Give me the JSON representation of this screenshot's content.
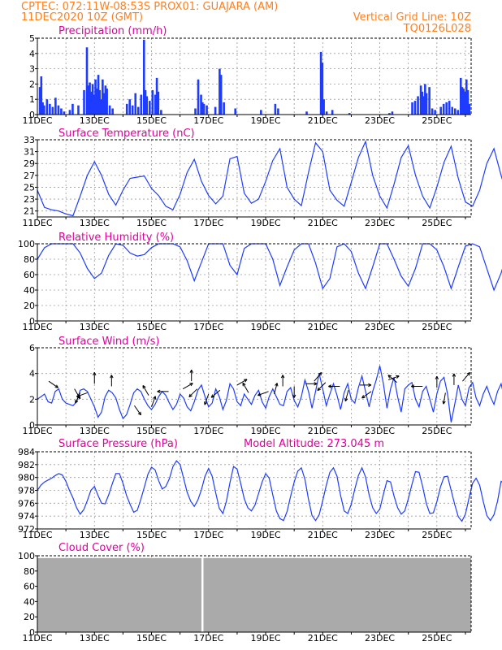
{
  "header": {
    "line1_left": "CPTEC:   072:11W-08:53S   PROX01: GUAJARA (AM)",
    "line2_left": "11DEC2020 10Z (GMT)",
    "line2_right": "Vertical Grid Line: 10Z",
    "line3_right": "TQ0126L028"
  },
  "colors": {
    "header": "#ff7f1e",
    "title": "#e0009a",
    "series": "#1e3cff",
    "cloud": "#aaaaaa",
    "arrow": "#000000"
  },
  "x_ticks": [
    "11DEC",
    "13DEC",
    "15DEC",
    "17DEC",
    "19DEC",
    "21DEC",
    "23DEC",
    "25DEC"
  ],
  "chart_data": [
    {
      "id": "precip",
      "type": "bar",
      "title": "Precipitation (mm/h)",
      "ylim": [
        0,
        5
      ],
      "yticks": [
        "0",
        "1",
        "2",
        "3",
        "4",
        "5"
      ],
      "x_range_days": [
        0,
        15.2
      ],
      "bars": [
        [
          0.05,
          1.8
        ],
        [
          0.1,
          2.5
        ],
        [
          0.15,
          0.8
        ],
        [
          0.2,
          0.6
        ],
        [
          0.3,
          1.0
        ],
        [
          0.4,
          0.7
        ],
        [
          0.5,
          0.5
        ],
        [
          0.6,
          1.1
        ],
        [
          0.7,
          0.6
        ],
        [
          0.8,
          0.4
        ],
        [
          0.9,
          0.2
        ],
        [
          1.1,
          0.3
        ],
        [
          1.2,
          0.7
        ],
        [
          1.4,
          0.6
        ],
        [
          1.6,
          1.6
        ],
        [
          1.7,
          4.4
        ],
        [
          1.75,
          1.9
        ],
        [
          1.8,
          2.1
        ],
        [
          1.85,
          1.5
        ],
        [
          1.9,
          2.0
        ],
        [
          1.95,
          1.3
        ],
        [
          2.0,
          2.3
        ],
        [
          2.05,
          1.7
        ],
        [
          2.1,
          2.6
        ],
        [
          2.15,
          1.6
        ],
        [
          2.2,
          1.0
        ],
        [
          2.25,
          2.3
        ],
        [
          2.3,
          1.4
        ],
        [
          2.35,
          1.9
        ],
        [
          2.4,
          1.7
        ],
        [
          2.5,
          0.6
        ],
        [
          2.6,
          0.4
        ],
        [
          3.1,
          0.7
        ],
        [
          3.2,
          1.0
        ],
        [
          3.3,
          0.6
        ],
        [
          3.4,
          1.4
        ],
        [
          3.5,
          0.5
        ],
        [
          3.6,
          1.3
        ],
        [
          3.7,
          4.9
        ],
        [
          3.75,
          1.6
        ],
        [
          3.8,
          1.2
        ],
        [
          3.9,
          0.9
        ],
        [
          4.0,
          1.6
        ],
        [
          4.1,
          1.3
        ],
        [
          4.15,
          2.4
        ],
        [
          4.2,
          1.5
        ],
        [
          4.3,
          0.3
        ],
        [
          5.5,
          0.4
        ],
        [
          5.6,
          2.3
        ],
        [
          5.7,
          1.3
        ],
        [
          5.75,
          0.8
        ],
        [
          5.8,
          0.7
        ],
        [
          5.9,
          0.6
        ],
        [
          6.2,
          0.5
        ],
        [
          6.35,
          3.0
        ],
        [
          6.4,
          2.6
        ],
        [
          6.5,
          0.8
        ],
        [
          6.9,
          0.4
        ],
        [
          7.8,
          0.3
        ],
        [
          8.3,
          0.7
        ],
        [
          8.4,
          0.4
        ],
        [
          9.4,
          0.2
        ],
        [
          9.9,
          4.1
        ],
        [
          9.95,
          3.4
        ],
        [
          10.0,
          1.0
        ],
        [
          10.1,
          0.2
        ],
        [
          10.3,
          0.3
        ],
        [
          10.9,
          0.1
        ],
        [
          12.3,
          0.1
        ],
        [
          12.4,
          0.2
        ],
        [
          13.1,
          0.8
        ],
        [
          13.2,
          0.9
        ],
        [
          13.3,
          1.2
        ],
        [
          13.4,
          1.9
        ],
        [
          13.45,
          1.5
        ],
        [
          13.5,
          1.2
        ],
        [
          13.55,
          2.0
        ],
        [
          13.6,
          1.4
        ],
        [
          13.7,
          1.8
        ],
        [
          13.8,
          0.4
        ],
        [
          13.9,
          0.3
        ],
        [
          14.1,
          0.5
        ],
        [
          14.2,
          0.7
        ],
        [
          14.3,
          0.8
        ],
        [
          14.4,
          0.9
        ],
        [
          14.5,
          0.5
        ],
        [
          14.6,
          0.4
        ],
        [
          14.7,
          0.3
        ],
        [
          14.8,
          2.4
        ],
        [
          14.85,
          1.8
        ],
        [
          14.9,
          1.7
        ],
        [
          14.95,
          1.5
        ],
        [
          15.0,
          2.3
        ],
        [
          15.05,
          1.6
        ],
        [
          15.1,
          0.7
        ]
      ]
    },
    {
      "id": "temp",
      "type": "line",
      "title": "Surface Temperature (nC)",
      "ylim": [
        20,
        33
      ],
      "yticks": [
        "21",
        "23",
        "25",
        "27",
        "29",
        "31",
        "33"
      ],
      "ytick_values": [
        21,
        23,
        25,
        27,
        29,
        31,
        33
      ],
      "step_days": 0.25,
      "values": [
        24.5,
        21.6,
        21.2,
        21.0,
        20.5,
        20.2,
        23.5,
        27.0,
        29.3,
        27.0,
        23.8,
        22.0,
        24.5,
        26.5,
        26.7,
        26.9,
        24.8,
        23.6,
        21.8,
        21.2,
        23.8,
        27.5,
        29.7,
        26.0,
        23.6,
        22.2,
        23.5,
        29.8,
        30.2,
        24.0,
        22.3,
        23.0,
        26.0,
        29.5,
        31.5,
        25.0,
        23.0,
        21.9,
        27.5,
        32.5,
        31.0,
        24.5,
        22.8,
        21.8,
        25.8,
        30.0,
        32.7,
        27.0,
        23.5,
        21.5,
        25.5,
        30.0,
        32.0,
        27.0,
        23.5,
        21.5,
        25.0,
        29.2,
        31.9,
        26.5,
        22.5,
        21.8,
        24.5,
        29.0,
        31.5,
        27.0,
        23.0,
        22.5,
        24.5,
        28.5,
        31.5,
        27.5,
        23.5,
        22.0,
        25.5,
        29.5,
        31.5,
        27.0,
        23.0,
        22.0,
        25.0,
        28.5,
        31.5,
        27.5,
        23.5,
        22.5,
        24.0,
        27.5,
        30.5,
        27.0,
        24.5,
        22.5,
        23.5,
        28.0,
        31.5,
        27.0,
        24.5,
        22.5,
        24.5,
        28.5,
        29.5,
        26.0,
        24.5,
        23.0,
        24.5,
        27.5,
        29.0,
        24.0,
        23.0,
        22.0,
        24.0,
        29.5,
        29.5,
        28.0,
        28.5,
        29.3,
        29.0,
        29.0
      ]
    },
    {
      "id": "rh",
      "type": "line",
      "title": "Relative Humidity (%)",
      "ylim": [
        0,
        100
      ],
      "yticks": [
        "0",
        "20",
        "40",
        "60",
        "80",
        "100"
      ],
      "ytick_values": [
        0,
        20,
        40,
        60,
        80,
        100
      ],
      "step_days": 0.25,
      "values": [
        80,
        95,
        100,
        100,
        100,
        100,
        88,
        68,
        55,
        62,
        85,
        100,
        98,
        88,
        84,
        86,
        95,
        100,
        100,
        100,
        96,
        78,
        52,
        76,
        100,
        100,
        100,
        72,
        60,
        94,
        100,
        100,
        100,
        80,
        46,
        70,
        92,
        100,
        100,
        75,
        42,
        55,
        96,
        100,
        90,
        62,
        42,
        70,
        100,
        100,
        80,
        58,
        45,
        68,
        100,
        100,
        92,
        70,
        42,
        70,
        97,
        100,
        96,
        68,
        40,
        62,
        92,
        100,
        96,
        64,
        43,
        70,
        100,
        100,
        90,
        60,
        50,
        70,
        97,
        100,
        94,
        62,
        46,
        72,
        100,
        100,
        88,
        60,
        43,
        80,
        100,
        100,
        84,
        62,
        40,
        70,
        100,
        100,
        96,
        72,
        50,
        76,
        98,
        100,
        78,
        55,
        70,
        98,
        100,
        92,
        70,
        60,
        88,
        100,
        100,
        80,
        70,
        70,
        65,
        62
      ]
    },
    {
      "id": "wind",
      "type": "line",
      "title": "Surface Wind (m/s)",
      "ylim": [
        0,
        6
      ],
      "yticks": [
        "0",
        "2",
        "4",
        "6"
      ],
      "ytick_values": [
        0,
        2,
        4,
        6
      ],
      "step_days": 0.125,
      "values": [
        2.0,
        2.2,
        2.4,
        1.8,
        1.7,
        2.6,
        2.8,
        2.0,
        1.7,
        1.6,
        1.5,
        1.8,
        2.7,
        2.8,
        2.6,
        2.0,
        1.4,
        0.6,
        1.0,
        2.2,
        2.7,
        2.5,
        2.1,
        1.2,
        0.5,
        0.8,
        1.6,
        2.5,
        2.8,
        2.6,
        2.0,
        1.5,
        1.2,
        1.6,
        2.2,
        2.6,
        2.3,
        1.7,
        1.2,
        1.6,
        2.4,
        2.1,
        1.4,
        1.1,
        1.8,
        2.7,
        3.1,
        2.2,
        1.4,
        1.7,
        2.8,
        2.2,
        1.2,
        1.9,
        3.2,
        2.8,
        1.8,
        1.5,
        2.4,
        2.0,
        1.6,
        2.3,
        2.7,
        1.8,
        1.3,
        2.2,
        2.8,
        2.2,
        1.6,
        1.5,
        2.6,
        2.9,
        1.9,
        1.4,
        2.2,
        3.5,
        2.6,
        1.3,
        2.6,
        4.0,
        2.8,
        1.5,
        2.4,
        3.2,
        2.3,
        1.2,
        2.5,
        3.2,
        2.0,
        1.7,
        2.9,
        3.8,
        2.6,
        1.4,
        2.6,
        3.5,
        4.6,
        3.2,
        1.3,
        2.8,
        3.7,
        2.2,
        1.0,
        2.8,
        3.1,
        3.3,
        2.0,
        1.4,
        2.6,
        3.0,
        2.0,
        1.0,
        2.4,
        3.4,
        3.7,
        2.4,
        0.2,
        1.6,
        3.1,
        2.0,
        1.5,
        2.9,
        3.3,
        2.1,
        1.5,
        2.4,
        3.0,
        2.2,
        1.6,
        2.6,
        3.2,
        2.0,
        1.5,
        2.9,
        4.8,
        3.0,
        1.7,
        2.6,
        3.8,
        2.4,
        1.5,
        2.6,
        3.6,
        2.2,
        1.4,
        2.6,
        3.1,
        1.6,
        1.4,
        2.8,
        4.4,
        3.5,
        2.1,
        3.2,
        4.3,
        2.8,
        1.5,
        2.6,
        3.3,
        2.0,
        1.3,
        2.4,
        3.0,
        2.0,
        1.6,
        2.7,
        4.2,
        3.4,
        2.1,
        1.9,
        3.4,
        3.6,
        2.6,
        1.8,
        2.9,
        3.3,
        1.0,
        1.4,
        2.8,
        3.5,
        3.0,
        2.0,
        1.6,
        2.4,
        2.7,
        2.0,
        1.4,
        2.1,
        2.4,
        1.6,
        1.2,
        2.0,
        2.5,
        1.4,
        1.1,
        2.2,
        2.6,
        1.8,
        1.3,
        2.1,
        3.2,
        3.4,
        2.6,
        2.0,
        2.4,
        3.0,
        2.2,
        1.5,
        1.8,
        2.8,
        3.6,
        2.4,
        1.6,
        2.1,
        2.7,
        2.0,
        1.5,
        2.4,
        2.6,
        1.2,
        0.9,
        1.6,
        2.3,
        1.7,
        1.3,
        2.1,
        2.6
      ],
      "arrows": [
        [
          0.4,
          3.4,
          125
        ],
        [
          1.3,
          2.8,
          150
        ],
        [
          1.5,
          2.5,
          205
        ],
        [
          1.75,
          2.5,
          250
        ],
        [
          2.0,
          3.2,
          0
        ],
        [
          2.6,
          3.0,
          0
        ],
        [
          3.4,
          1.5,
          145
        ],
        [
          3.9,
          2.3,
          330
        ],
        [
          4.0,
          1.4,
          20
        ],
        [
          4.6,
          2.6,
          270
        ],
        [
          5.1,
          2.8,
          60
        ],
        [
          5.4,
          3.4,
          0
        ],
        [
          5.6,
          2.8,
          225
        ],
        [
          6.0,
          2.4,
          200
        ],
        [
          6.4,
          2.7,
          230
        ],
        [
          7.0,
          3.1,
          60
        ],
        [
          7.4,
          2.5,
          330
        ],
        [
          8.1,
          2.6,
          250
        ],
        [
          8.3,
          2.4,
          15
        ],
        [
          8.6,
          3.0,
          0
        ],
        [
          9.0,
          3.0,
          180
        ],
        [
          9.4,
          3.2,
          90
        ],
        [
          9.7,
          3.4,
          40
        ],
        [
          10.1,
          3.3,
          225
        ],
        [
          10.6,
          3.0,
          270
        ],
        [
          10.9,
          2.7,
          195
        ],
        [
          11.3,
          3.1,
          90
        ],
        [
          11.7,
          2.6,
          235
        ],
        [
          12.3,
          3.5,
          70
        ],
        [
          12.6,
          3.3,
          310
        ],
        [
          13.5,
          3.0,
          270
        ],
        [
          14.0,
          2.9,
          0
        ],
        [
          14.3,
          2.5,
          190
        ],
        [
          14.6,
          3.1,
          0
        ],
        [
          14.9,
          3.4,
          40
        ]
      ]
    },
    {
      "id": "pressure",
      "type": "line",
      "title": "Surface Pressure (hPa)",
      "annotation": "Model Altitude: 273.045 m",
      "ylim": [
        972,
        984
      ],
      "yticks": [
        "972",
        "974",
        "976",
        "978",
        "980",
        "982",
        "984"
      ],
      "ytick_values": [
        972,
        974,
        976,
        978,
        980,
        982,
        984
      ],
      "step_days": 0.125,
      "values": [
        978.0,
        978.8,
        979.3,
        979.6,
        979.9,
        980.3,
        980.6,
        980.4,
        979.4,
        978.0,
        976.8,
        975.3,
        974.3,
        975.0,
        976.4,
        978.0,
        978.6,
        977.2,
        976.0,
        975.9,
        977.3,
        979.0,
        980.6,
        980.6,
        979.1,
        977.2,
        975.8,
        974.6,
        974.9,
        976.6,
        978.5,
        980.5,
        981.6,
        981.2,
        979.5,
        978.2,
        978.6,
        979.8,
        981.7,
        982.6,
        982.0,
        979.9,
        977.7,
        976.3,
        975.5,
        976.5,
        978.1,
        980.2,
        981.4,
        980.2,
        977.6,
        975.2,
        974.4,
        976.3,
        979.2,
        981.7,
        981.3,
        979.1,
        976.7,
        975.3,
        974.8,
        975.7,
        977.5,
        979.3,
        980.6,
        979.9,
        977.3,
        974.8,
        973.6,
        973.3,
        974.7,
        977.1,
        979.3,
        981.0,
        981.5,
        979.7,
        976.6,
        974.1,
        973.3,
        974.2,
        976.4,
        978.8,
        980.8,
        981.5,
        980.2,
        977.2,
        974.8,
        974.4,
        975.8,
        978.2,
        980.3,
        981.5,
        980.1,
        977.3,
        975.3,
        974.4,
        975.1,
        977.4,
        979.5,
        979.3,
        977.1,
        975.3,
        974.3,
        974.8,
        976.7,
        978.9,
        980.9,
        980.8,
        978.6,
        976.0,
        974.4,
        974.5,
        976.2,
        978.5,
        980.1,
        980.2,
        978.0,
        975.8,
        973.9,
        973.2,
        974.3,
        976.8,
        979.1,
        979.9,
        978.8,
        976.3,
        974.1,
        973.3,
        974.2,
        976.3,
        979.4,
        979.0,
        976.4,
        974.3,
        973.3,
        973.4,
        974.8,
        976.8,
        978.2,
        978.5,
        977.7,
        975.3,
        973.7,
        973.9,
        975.2,
        976.7,
        978.2,
        978.7,
        977.3,
        975.4,
        974.2,
        974.2,
        975.8,
        978.2,
        979.5,
        978.5,
        976.1,
        974.4,
        974.1,
        975.0,
        976.6,
        978.4,
        979.8,
        979.6,
        977.6,
        975.2,
        973.8,
        973.2,
        973.9,
        975.4,
        977.3,
        978.5,
        978.2,
        976.5,
        974.6,
        973.2,
        972.8,
        973.5,
        975.2,
        977.1,
        978.9,
        979.8,
        978.3,
        975.8,
        974.0,
        973.4,
        974.1,
        975.7,
        977.5,
        978.3,
        977.6,
        975.6,
        974.0,
        973.3,
        973.7,
        975.2,
        977.2,
        978.7,
        979.5,
        978.7,
        976.4,
        974.6,
        973.4,
        973.5,
        974.7,
        976.4,
        978.0,
        978.8,
        977.9,
        975.7,
        974.1,
        973.4,
        973.6,
        974.8,
        976.6,
        978.2,
        978.9,
        978.2,
        976.1,
        974.3,
        973.0,
        972.8,
        973.7
      ]
    },
    {
      "id": "cloud",
      "type": "bar",
      "title": "Cloud Cover (%)",
      "ylim": [
        0,
        100
      ],
      "yticks": [
        "0",
        "20",
        "40",
        "60",
        "80",
        "100"
      ],
      "ytick_values": [
        0,
        20,
        40,
        60,
        80,
        100
      ],
      "fill_level": 97,
      "gap_day": 5.75
    }
  ]
}
